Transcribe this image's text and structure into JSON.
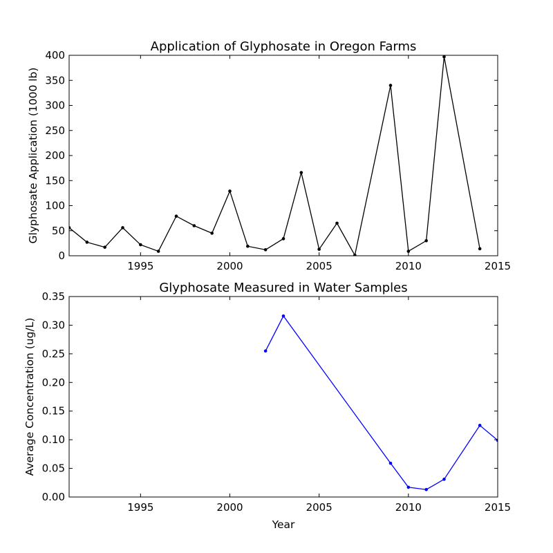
{
  "chart_data": [
    {
      "type": "line",
      "title": "Application of Glyphosate in Oregon Farms",
      "xlabel": "",
      "ylabel": "Glyphosate Application (1000 lb)",
      "xlim": [
        1991,
        2015
      ],
      "ylim": [
        0,
        400
      ],
      "xticks": [
        1995,
        2000,
        2005,
        2010,
        2015
      ],
      "yticks": [
        0,
        50,
        100,
        150,
        200,
        250,
        300,
        350,
        400
      ],
      "grid": false,
      "color": "#000000",
      "series": [
        {
          "x": [
            1991,
            1992,
            1993,
            1994,
            1995,
            1996,
            1997,
            1998,
            1999,
            2000,
            2001,
            2002,
            2003,
            2004,
            2005,
            2006,
            2007,
            2009,
            2010,
            2011,
            2012,
            2014
          ],
          "y": [
            56,
            27,
            17,
            56,
            22,
            9,
            79,
            60,
            45,
            129,
            19,
            12,
            34,
            166,
            13,
            65,
            1,
            340,
            9,
            30,
            397,
            14
          ]
        }
      ]
    },
    {
      "type": "line",
      "title": "Glyphosate Measured in Water Samples",
      "xlabel": "Year",
      "ylabel": "Average Concentration (ug/L)",
      "xlim": [
        1991,
        2015
      ],
      "ylim": [
        0,
        0.35
      ],
      "xticks": [
        1995,
        2000,
        2005,
        2010,
        2015
      ],
      "yticks": [
        "0.00",
        "0.05",
        "0.10",
        "0.15",
        "0.20",
        "0.25",
        "0.30",
        "0.35"
      ],
      "grid": false,
      "color": "#0000ff",
      "series": [
        {
          "x": [
            2002,
            2003,
            2009,
            2010,
            2011,
            2012,
            2014,
            2015
          ],
          "y": [
            0.255,
            0.316,
            0.059,
            0.017,
            0.013,
            0.031,
            0.125,
            0.099
          ]
        }
      ]
    }
  ]
}
